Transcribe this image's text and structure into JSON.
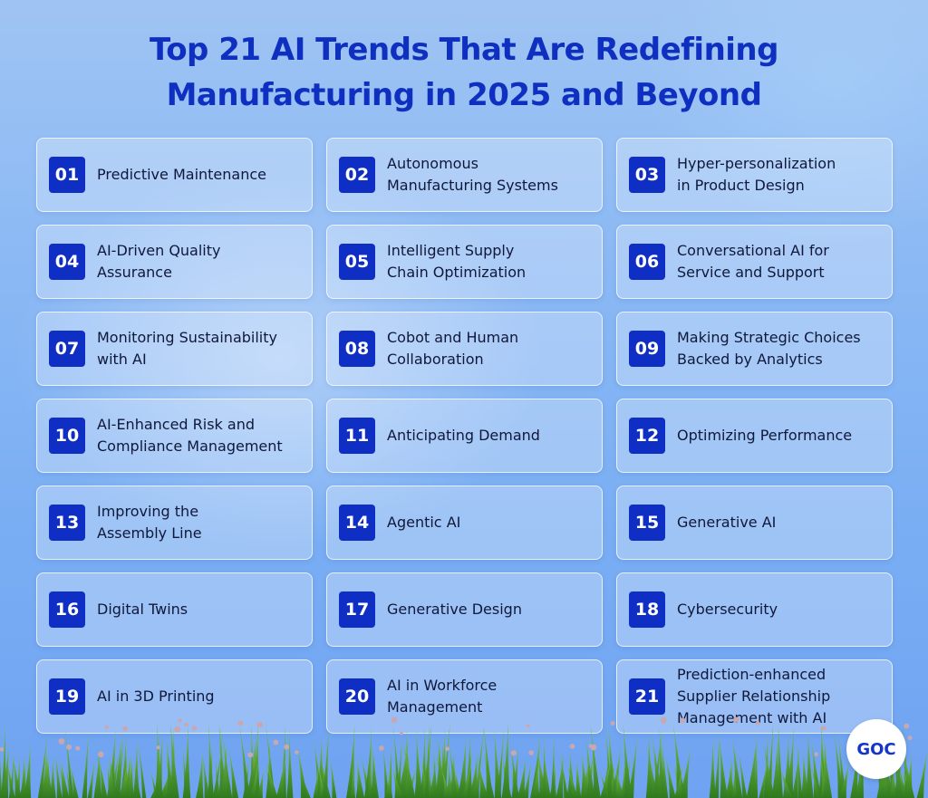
{
  "header": {
    "title_line1": "Top 21 AI Trends That Are Redefining",
    "title_line2": "Manufacturing in 2025 and Beyond"
  },
  "trends": [
    {
      "num": "01",
      "label": "Predictive Maintenance"
    },
    {
      "num": "02",
      "label": "Autonomous\nManufacturing Systems"
    },
    {
      "num": "03",
      "label": "Hyper-personalization\nin Product Design"
    },
    {
      "num": "04",
      "label": "AI-Driven Quality\nAssurance"
    },
    {
      "num": "05",
      "label": "Intelligent Supply\nChain Optimization"
    },
    {
      "num": "06",
      "label": "Conversational AI for\nService and Support"
    },
    {
      "num": "07",
      "label": "Monitoring Sustainability\nwith AI"
    },
    {
      "num": "08",
      "label": "Cobot and Human\nCollaboration"
    },
    {
      "num": "09",
      "label": "Making Strategic Choices\nBacked by Analytics"
    },
    {
      "num": "10",
      "label": "AI-Enhanced Risk and\nCompliance Management"
    },
    {
      "num": "11",
      "label": "Anticipating Demand"
    },
    {
      "num": "12",
      "label": "Optimizing Performance"
    },
    {
      "num": "13",
      "label": "Improving the\nAssembly Line"
    },
    {
      "num": "14",
      "label": "Agentic AI"
    },
    {
      "num": "15",
      "label": "Generative AI"
    },
    {
      "num": "16",
      "label": "Digital Twins"
    },
    {
      "num": "17",
      "label": "Generative Design"
    },
    {
      "num": "18",
      "label": "Cybersecurity"
    },
    {
      "num": "19",
      "label": "AI in 3D Printing"
    },
    {
      "num": "20",
      "label": "AI in Workforce\nManagement"
    },
    {
      "num": "21",
      "label": "Prediction-enhanced\nSupplier Relationship\nManagement with AI"
    }
  ],
  "logo": {
    "text": "GOC"
  },
  "colors": {
    "accent": "#0f2fc4",
    "title": "#0e2fbf",
    "background": "#8ab8f4"
  }
}
